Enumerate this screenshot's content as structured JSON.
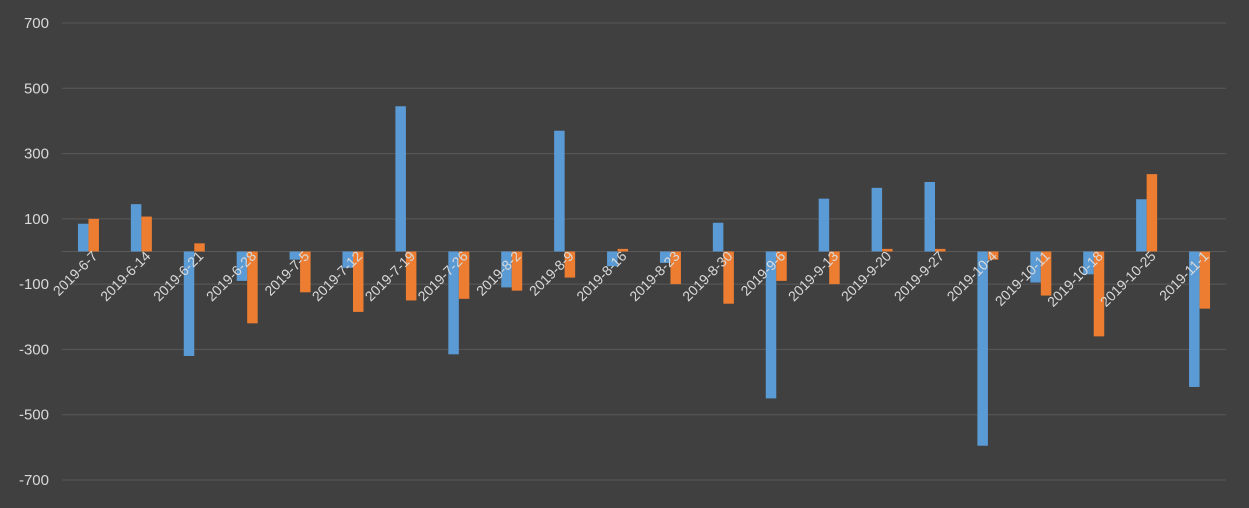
{
  "chart_data": {
    "type": "bar",
    "title": "",
    "xlabel": "",
    "ylabel": "",
    "ylim": [
      -700,
      700
    ],
    "yticks": [
      700,
      500,
      300,
      100,
      -100,
      -300,
      -500,
      -700
    ],
    "ytick_labels": [
      "700",
      "500",
      "300",
      "100",
      "-100",
      "-300",
      "-500",
      "-700"
    ],
    "grid": true,
    "legend": "none",
    "categories": [
      "2019-6-7",
      "2019-6-14",
      "2019-6-21",
      "2019-6-28",
      "2019-7-5",
      "2019-7-12",
      "2019-7-19",
      "2019-7-26",
      "2019-8-2",
      "2019-8-9",
      "2019-8-16",
      "2019-8-23",
      "2019-8-30",
      "2019-9-6",
      "2019-9-13",
      "2019-9-20",
      "2019-9-27",
      "2019-10-4",
      "2019-10-11",
      "2019-10-18",
      "2019-10-25",
      "2019-11-1"
    ],
    "series": [
      {
        "color": "#5B9BD5",
        "values": [
          85,
          145,
          -320,
          -90,
          -25,
          -50,
          445,
          -315,
          -110,
          370,
          -45,
          -35,
          88,
          -450,
          162,
          195,
          213,
          -595,
          -95,
          -70,
          160,
          -415
        ]
      },
      {
        "color": "#ED7D31",
        "values": [
          100,
          107,
          25,
          -220,
          -125,
          -185,
          -150,
          -145,
          -120,
          -80,
          8,
          -100,
          -160,
          -90,
          -100,
          8,
          8,
          -25,
          -135,
          -260,
          237,
          -175
        ]
      }
    ],
    "colors": {
      "background": "#404040",
      "grid": "#595959",
      "tick_text": "#D9D9D9"
    }
  }
}
